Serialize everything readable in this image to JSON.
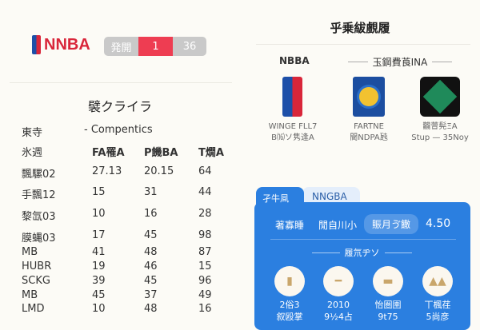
{
  "left": {
    "logo_text": "NNBA",
    "score": {
      "label": "発開",
      "home": "1",
      "away": "36"
    },
    "title": "襞クライラ",
    "meta": {
      "label": "東寺",
      "value": "- Compentics"
    },
    "columns": [
      "氷週",
      "FA罹A",
      "P饑BA",
      "T燗A"
    ],
    "rows": [
      [
        "飄騾02",
        "27.13",
        "20.15",
        "64"
      ],
      [
        "手飄12",
        "15",
        "31",
        "44"
      ],
      [
        "黎氙03",
        "10",
        "16",
        "28"
      ],
      [
        "膜蝿03",
        "17",
        "45",
        "98"
      ],
      [
        "MB",
        "41",
        "48",
        "87"
      ],
      [
        "HUBR",
        "19",
        "46",
        "15"
      ],
      [
        "SCKG",
        "39",
        "45",
        "96"
      ],
      [
        "MB",
        "45",
        "37",
        "49"
      ],
      [
        "LMD",
        "10",
        "48",
        "16"
      ]
    ]
  },
  "right": {
    "title": "乎乗紱覻履",
    "section_left": "NBBA",
    "section_right": "玉鋼費莨INA",
    "teams": [
      {
        "line1": "WINGE FLL7",
        "line2": "B⒃ソ隽逢A",
        "logo": "nba-logo",
        "colors": [
          "#1d4fa8",
          "#d9263a"
        ]
      },
      {
        "line1": "FARTNE",
        "line2": "䦡NDPA瓲",
        "logo": "warriors-logo",
        "colors": [
          "#1c4ea0",
          "#f2c230"
        ]
      },
      {
        "line1": "龖萺髡ΞA",
        "line2": "Stup — 35Noy",
        "logo": "celtics-logo",
        "colors": [
          "#111111",
          "#1f8a5a"
        ]
      }
    ],
    "card": {
      "tabs": [
        "孑牛凬",
        "NNGBA"
      ],
      "stats": [
        "著寡睡",
        "閒自川小",
        "賑月ゔ饊",
        "4.50"
      ],
      "section": "履氘ヂソ",
      "items": [
        {
          "icon": "battery-icon",
          "line1": "2俗3",
          "line2": "叙殴掌"
        },
        {
          "icon": "key-icon",
          "line1": "2010",
          "line2": "9½4占"
        },
        {
          "icon": "card-icon",
          "line1": "怡圏圉",
          "line2": "9t75"
        },
        {
          "icon": "mountain-icon",
          "line1": "丅楓荏",
          "line2": "5尚彦"
        }
      ],
      "accent": "#2b7fe0"
    }
  }
}
